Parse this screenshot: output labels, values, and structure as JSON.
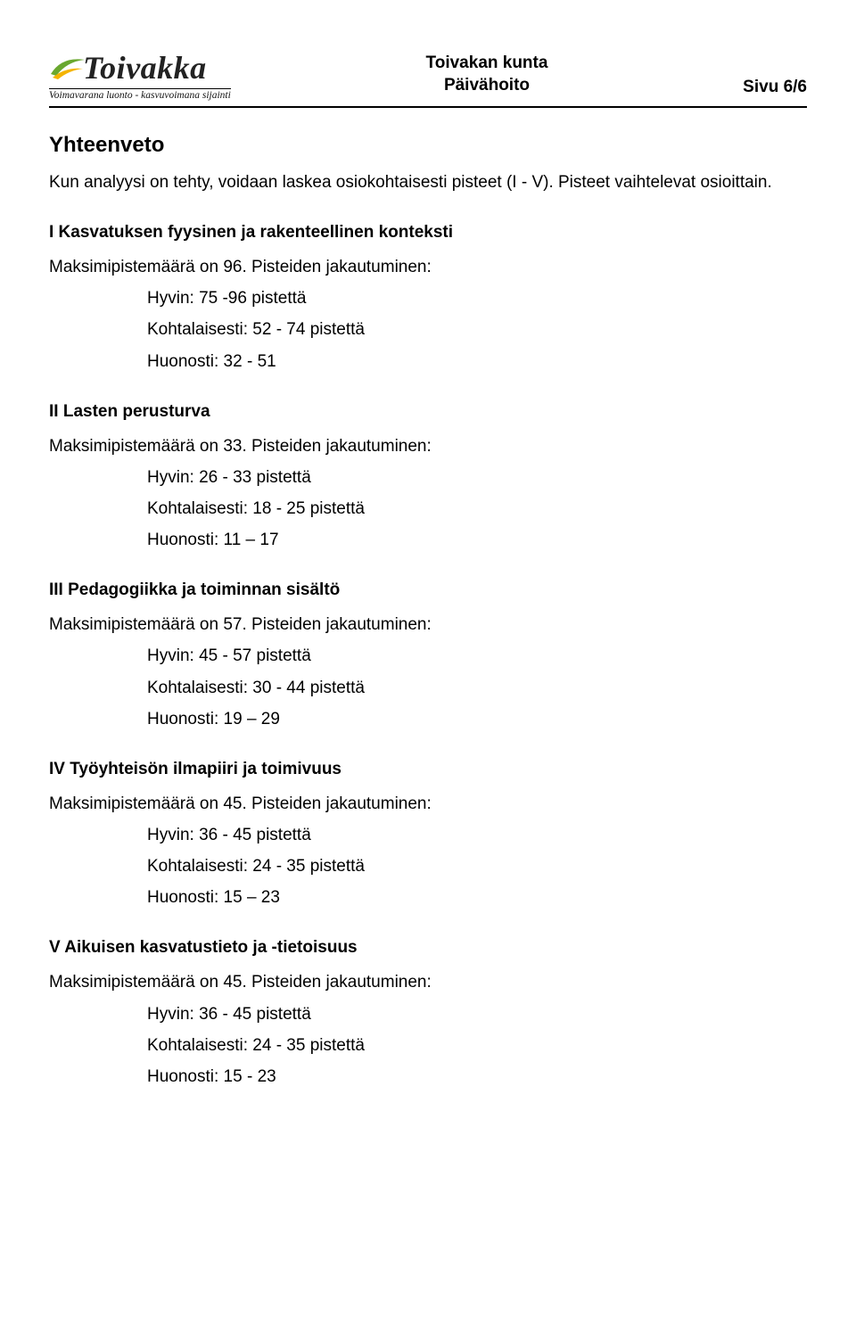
{
  "header": {
    "logo_name": "Toivakka",
    "logo_tagline": "Voimavarana luonto - kasvuvoimana sijainti",
    "center_line1": "Toivakan kunta",
    "center_line2": "Päivähoito",
    "page_label": "Sivu 6/6"
  },
  "title": "Yhteenveto",
  "intro": "Kun analyysi on tehty, voidaan laskea osiokohtaisesti pisteet (I - V). Pisteet vaihtelevat osioittain.",
  "sections": [
    {
      "title": "I Kasvatuksen fyysinen ja rakenteellinen konteksti",
      "max_line": "Maksimipistemäärä on 96. Pisteiden jakautuminen:",
      "grades": [
        "Hyvin: 75 -96 pistettä",
        "Kohtalaisesti: 52 - 74 pistettä",
        "Huonosti: 32 - 51"
      ]
    },
    {
      "title": "II Lasten perusturva",
      "max_line": "Maksimipistemäärä on 33. Pisteiden jakautuminen:",
      "grades": [
        "Hyvin: 26 - 33 pistettä",
        "Kohtalaisesti: 18 - 25 pistettä",
        "Huonosti: 11 – 17"
      ]
    },
    {
      "title": "III Pedagogiikka ja toiminnan sisältö",
      "max_line": "Maksimipistemäärä on 57. Pisteiden jakautuminen:",
      "grades": [
        "Hyvin: 45 - 57 pistettä",
        "Kohtalaisesti: 30 - 44 pistettä",
        "Huonosti: 19 – 29"
      ]
    },
    {
      "title": "IV Työyhteisön ilmapiiri ja toimivuus",
      "max_line": "Maksimipistemäärä on 45. Pisteiden jakautuminen:",
      "grades": [
        "Hyvin: 36 - 45 pistettä",
        "Kohtalaisesti: 24 - 35 pistettä",
        "Huonosti: 15 – 23"
      ]
    },
    {
      "title": "V Aikuisen kasvatustieto ja -tietoisuus",
      "max_line": "Maksimipistemäärä on 45. Pisteiden jakautuminen:",
      "grades": [
        "Hyvin: 36 - 45 pistettä",
        "Kohtalaisesti: 24 - 35 pistettä",
        "Huonosti: 15 - 23"
      ]
    }
  ],
  "colors": {
    "swoosh_green": "#6aa82f",
    "swoosh_yellow": "#f4b400",
    "text": "#000000",
    "background": "#ffffff"
  }
}
